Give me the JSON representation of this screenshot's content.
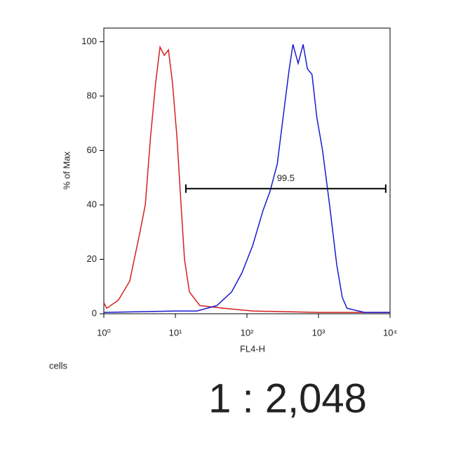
{
  "chart_data": {
    "type": "histogram-overlay",
    "x_label": "FL4-H",
    "y_label": "% of Max",
    "xscale": "log",
    "xlim": [
      1,
      10000
    ],
    "ylim": [
      0,
      105
    ],
    "xticks": [
      {
        "value": 1,
        "label": "10⁰"
      },
      {
        "value": 10,
        "label": "10¹"
      },
      {
        "value": 100,
        "label": "10²"
      },
      {
        "value": 1000,
        "label": "10³"
      },
      {
        "value": 10000,
        "label": "10⁴"
      }
    ],
    "yticks": [
      0,
      20,
      40,
      60,
      80,
      100
    ],
    "series": [
      {
        "color": "#d42020",
        "x": [
          1,
          1.1,
          1.6,
          2.3,
          3.2,
          3.8,
          4.5,
          5.3,
          6.1,
          7.0,
          8.0,
          9.1,
          10.5,
          12,
          13.4,
          15.7,
          22,
          48,
          120,
          1000,
          10000
        ],
        "y": [
          4,
          2,
          5,
          12,
          30,
          40,
          65,
          85,
          98,
          95,
          97,
          85,
          65,
          40,
          20,
          8,
          3,
          2,
          1,
          0.5,
          0.5
        ]
      },
      {
        "color": "#1a1ad0",
        "x": [
          1,
          10,
          20,
          38,
          61,
          85,
          120,
          168,
          210,
          265,
          330,
          390,
          440,
          520,
          610,
          700,
          810,
          950,
          1140,
          1430,
          1800,
          2150,
          2500,
          4400,
          10000
        ],
        "y": [
          0.5,
          1,
          1,
          3,
          8,
          15,
          25,
          38,
          45,
          55,
          75,
          90,
          99,
          92,
          99,
          90,
          88,
          72,
          60,
          40,
          18,
          6,
          2,
          0.5,
          0.5
        ]
      }
    ],
    "gate": {
      "x": [
        14,
        8700
      ],
      "y": 46,
      "value": 99.5
    }
  },
  "caption": {
    "label": "cells",
    "dilution": "1 : 2,048"
  }
}
